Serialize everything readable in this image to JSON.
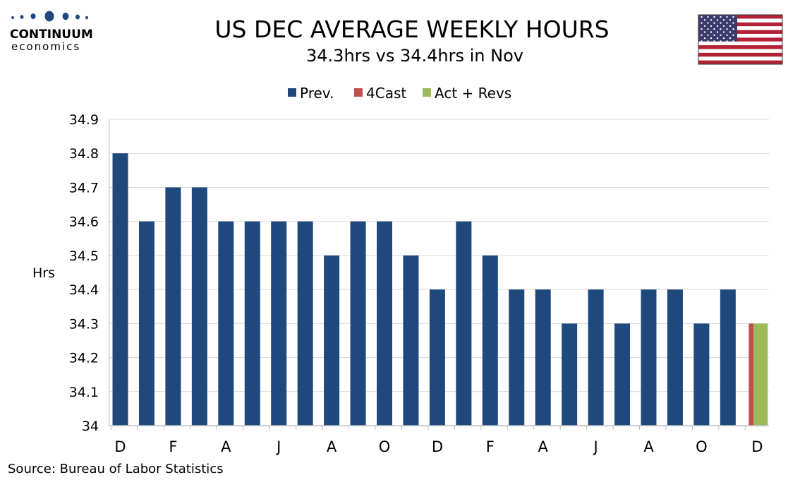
{
  "brand": {
    "name": "CONTINUUM",
    "sub": "economics"
  },
  "source": "Source: Bureau of Labor Statistics",
  "colors": {
    "prev": "#1f497d",
    "forecast": "#c0504d",
    "actual": "#9bbb59",
    "brand": "#1f497d",
    "grid": "#d9d9d9"
  },
  "chart_data": {
    "type": "bar",
    "title": "US DEC AVERAGE WEEKLY HOURS",
    "subtitle": "34.3hrs vs 34.4hrs in Nov",
    "ylabel": "Hrs",
    "xlabel": "",
    "ylim": [
      34,
      34.9
    ],
    "yticks": [
      "34",
      "34.1",
      "34.2",
      "34.3",
      "34.4",
      "34.5",
      "34.6",
      "34.7",
      "34.8",
      "34.9"
    ],
    "grid": true,
    "legend_position": "top-center",
    "xtick_labels": [
      "D",
      "F",
      "A",
      "J",
      "A",
      "O",
      "D",
      "F",
      "A",
      "J",
      "A",
      "O",
      "D"
    ],
    "series": [
      {
        "name": "Prev.",
        "color": "#1f497d",
        "values": [
          34.8,
          34.6,
          34.7,
          34.7,
          34.6,
          34.6,
          34.6,
          34.6,
          34.5,
          34.6,
          34.6,
          34.5,
          34.4,
          34.6,
          34.5,
          34.4,
          34.4,
          34.3,
          34.4,
          34.3,
          34.4,
          34.4,
          34.3,
          34.4
        ]
      },
      {
        "name": "4Cast",
        "color": "#c0504d",
        "values": [
          34.3
        ]
      },
      {
        "name": "Act + Revs",
        "color": "#9bbb59",
        "values": [
          34.3
        ]
      }
    ]
  }
}
